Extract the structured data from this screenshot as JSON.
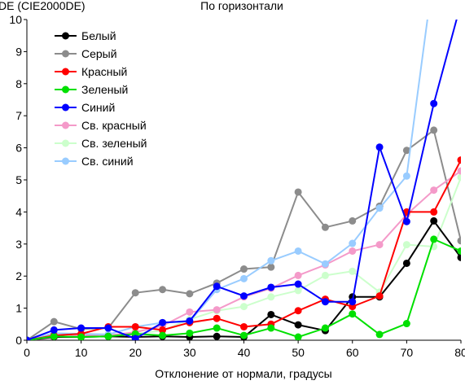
{
  "chart_data": {
    "type": "line",
    "title": "По горизонтали",
    "ylabel": "DE (CIE2000DE)",
    "xlabel": "Отклонение от нормали, градусы",
    "xlim": [
      0,
      80
    ],
    "ylim": [
      0,
      10
    ],
    "x_ticks": [
      0,
      10,
      20,
      30,
      40,
      50,
      60,
      70,
      80
    ],
    "y_ticks": [
      0,
      1,
      2,
      3,
      4,
      5,
      6,
      7,
      8,
      9,
      10
    ],
    "grid": false,
    "legend_position": "top-left",
    "x": [
      0,
      5,
      10,
      15,
      20,
      25,
      30,
      35,
      40,
      45,
      50,
      55,
      60,
      65,
      70,
      75,
      80
    ],
    "series": [
      {
        "name": "Белый",
        "color": "#000000",
        "values": [
          0.0,
          0.1,
          0.1,
          0.12,
          0.1,
          0.12,
          0.1,
          0.12,
          0.1,
          0.8,
          0.48,
          0.3,
          1.35,
          1.35,
          2.4,
          3.72,
          2.58
        ]
      },
      {
        "name": "Серый",
        "color": "#8c8c8c",
        "values": [
          0.0,
          0.58,
          0.35,
          0.38,
          1.48,
          1.58,
          1.45,
          1.78,
          2.22,
          2.28,
          4.62,
          3.52,
          3.72,
          4.18,
          5.92,
          6.55,
          3.1
        ]
      },
      {
        "name": "Красный",
        "color": "#ff0000",
        "values": [
          0.0,
          0.15,
          0.2,
          0.42,
          0.42,
          0.32,
          0.55,
          0.68,
          0.42,
          0.5,
          0.92,
          1.28,
          1.05,
          1.38,
          4.0,
          4.0,
          5.62
        ]
      },
      {
        "name": "Зеленый",
        "color": "#00e000",
        "values": [
          0.0,
          0.12,
          0.1,
          0.12,
          0.2,
          0.15,
          0.22,
          0.38,
          0.15,
          0.38,
          0.1,
          0.38,
          0.82,
          0.18,
          0.52,
          3.15,
          2.78
        ]
      },
      {
        "name": "Синий",
        "color": "#0000ff",
        "values": [
          0.0,
          0.32,
          0.38,
          0.38,
          0.05,
          0.55,
          0.6,
          1.68,
          1.38,
          1.65,
          1.75,
          1.2,
          1.2,
          6.02,
          3.7,
          7.38,
          10.5
        ]
      },
      {
        "name": "Св. красный",
        "color": "#f49ac9",
        "values": [
          0.0,
          0.08,
          0.15,
          0.15,
          0.25,
          0.45,
          0.88,
          0.95,
          1.35,
          1.62,
          2.02,
          2.35,
          2.78,
          2.98,
          3.92,
          4.68,
          5.28
        ]
      },
      {
        "name": "Св. зеленый",
        "color": "#ccffcc",
        "values": [
          0.0,
          0.1,
          0.12,
          0.15,
          0.2,
          0.3,
          0.65,
          0.92,
          1.05,
          1.35,
          1.55,
          2.02,
          2.15,
          1.5,
          2.98,
          2.92,
          5.08
        ]
      },
      {
        "name": "Св. синий",
        "color": "#99ccff",
        "values": [
          0.0,
          0.22,
          0.2,
          0.18,
          0.42,
          0.55,
          0.58,
          1.58,
          1.92,
          2.48,
          2.78,
          2.38,
          3.02,
          4.12,
          5.12,
          11.5,
          null
        ]
      }
    ]
  }
}
